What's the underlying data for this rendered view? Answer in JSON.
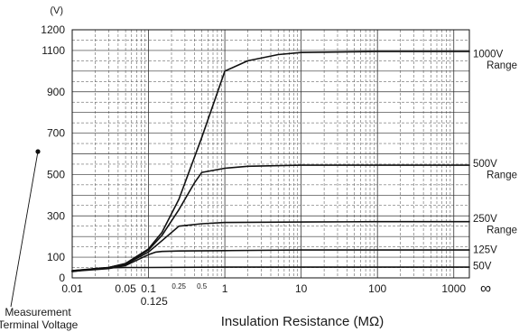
{
  "chart_data": {
    "type": "line",
    "xlabel": "Insulation Resistance (MΩ)",
    "ylabel": "Measurement Terminal Voltage",
    "y_unit": "(V)",
    "x_scale": "log",
    "xlim": [
      0.01,
      1600
    ],
    "ylim": [
      0,
      1200
    ],
    "grid": true,
    "x_ticks": [
      {
        "value": 0.01,
        "label": "0.01"
      },
      {
        "value": 0.05,
        "label": "0.05"
      },
      {
        "value": 0.1,
        "label": "0.1"
      },
      {
        "value": 1,
        "label": "1"
      },
      {
        "value": 10,
        "label": "10"
      },
      {
        "value": 100,
        "label": "100"
      },
      {
        "value": 1000,
        "label": "1000"
      }
    ],
    "x_minor_labels": [
      {
        "value": 0.125,
        "label": "0.125"
      },
      {
        "value": 0.25,
        "label": "0.25"
      },
      {
        "value": 0.5,
        "label": "0.5"
      }
    ],
    "x_infinity_label": "∞",
    "y_ticks": [
      {
        "value": 0,
        "label": "0"
      },
      {
        "value": 100,
        "label": "100"
      },
      {
        "value": 300,
        "label": "300"
      },
      {
        "value": 500,
        "label": "500"
      },
      {
        "value": 700,
        "label": "700"
      },
      {
        "value": 900,
        "label": "900"
      },
      {
        "value": 1100,
        "label": "1100"
      },
      {
        "value": 1200,
        "label": "1200"
      }
    ],
    "series": [
      {
        "name": "1000V Range",
        "label_lines": [
          "1000V",
          "Range"
        ],
        "label_y": [
          1085,
          1030
        ],
        "x": [
          0.01,
          0.03,
          0.05,
          0.1,
          0.15,
          0.25,
          0.5,
          1,
          2,
          5,
          10,
          100,
          1600
        ],
        "y": [
          35,
          50,
          70,
          140,
          220,
          380,
          680,
          1000,
          1050,
          1080,
          1090,
          1095,
          1095
        ]
      },
      {
        "name": "500V Range",
        "label_lines": [
          "500V",
          "Range"
        ],
        "label_y": [
          555,
          500
        ],
        "x": [
          0.01,
          0.03,
          0.05,
          0.1,
          0.15,
          0.25,
          0.4,
          0.5,
          1,
          2,
          10,
          100,
          1600
        ],
        "y": [
          35,
          50,
          68,
          135,
          205,
          330,
          460,
          510,
          530,
          540,
          545,
          545,
          545
        ]
      },
      {
        "name": "250V Range",
        "label_lines": [
          "250V",
          "Range"
        ],
        "label_y": [
          288,
          234
        ],
        "x": [
          0.01,
          0.03,
          0.05,
          0.1,
          0.15,
          0.25,
          0.5,
          1,
          10,
          100,
          1600
        ],
        "y": [
          33,
          48,
          65,
          125,
          180,
          250,
          262,
          268,
          270,
          272,
          272
        ]
      },
      {
        "name": "125V",
        "label_lines": [
          "125V"
        ],
        "label_y": [
          137
        ],
        "x": [
          0.01,
          0.03,
          0.05,
          0.1,
          0.125,
          0.15,
          0.25,
          1,
          10,
          100,
          1600
        ],
        "y": [
          32,
          45,
          60,
          112,
          125,
          128,
          130,
          132,
          135,
          135,
          135
        ]
      },
      {
        "name": "50V",
        "label_lines": [
          "50V"
        ],
        "label_y": [
          58
        ],
        "x": [
          0.01,
          0.02,
          0.03,
          0.05,
          0.1,
          1,
          10,
          100,
          1600
        ],
        "y": [
          30,
          45,
          49,
          50,
          50,
          52,
          52,
          52,
          52
        ]
      }
    ]
  }
}
